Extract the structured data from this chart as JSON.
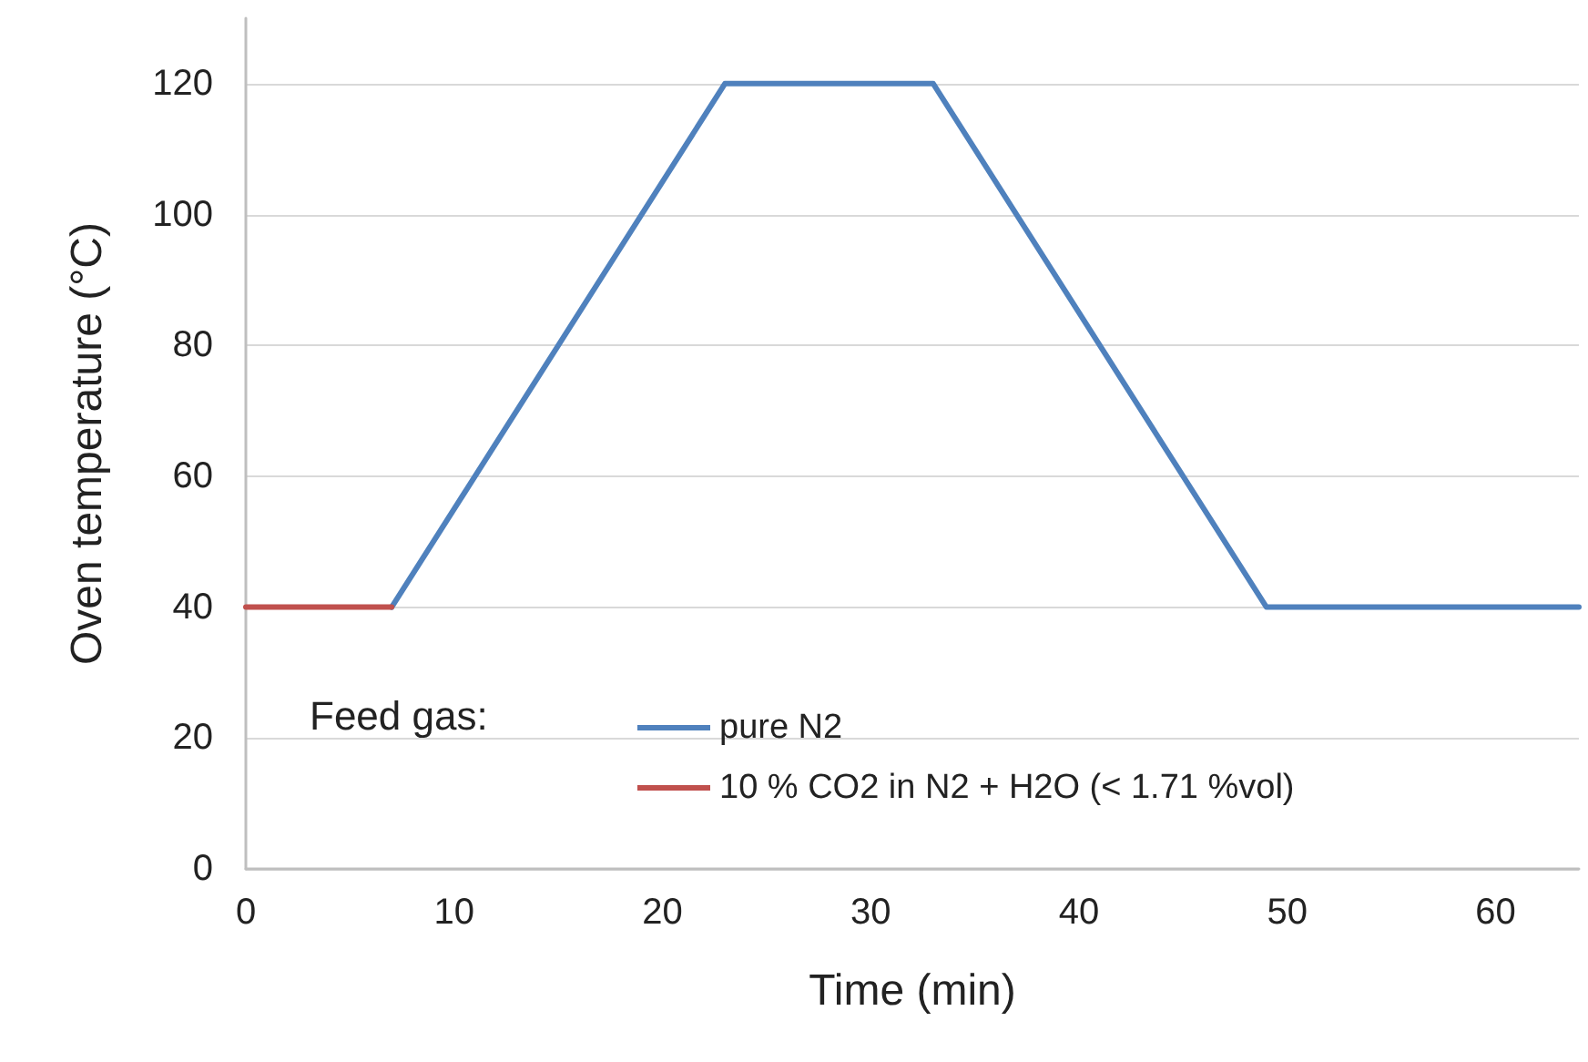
{
  "chart_data": {
    "type": "line",
    "xlabel": "Time (min)",
    "ylabel": "Oven temperature (°C)",
    "legend_title": "Feed gas:",
    "series": [
      {
        "name": "pure N2",
        "color": "#4f81bd",
        "x": [
          7,
          23,
          33,
          49,
          64
        ],
        "values": [
          40,
          120,
          120,
          40,
          40
        ]
      },
      {
        "name": "10 % CO2 in N2 + H2O (< 1.71 %vol)",
        "color": "#c0504d",
        "x": [
          0,
          7
        ],
        "values": [
          40,
          40
        ]
      }
    ],
    "xlim": [
      0,
      64
    ],
    "xticks": [
      0,
      10,
      20,
      30,
      40,
      50,
      60
    ],
    "ylim": [
      0,
      130
    ],
    "yticks": [
      0,
      20,
      40,
      60,
      80,
      100,
      120
    ],
    "grid": "y",
    "legend": "bottom left",
    "marker": "none",
    "line_style": "solid"
  }
}
